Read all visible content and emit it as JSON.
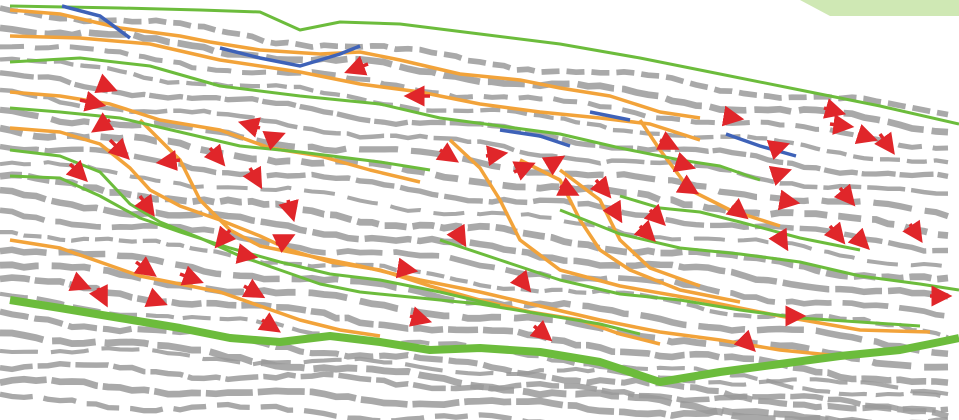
{
  "figure": {
    "colors": {
      "background": "#ffffff",
      "reflector": "#9a9a9a",
      "horizon_major": "#6cbc3c",
      "horizon_minor": "#6cbc3c",
      "fault": "#f2a33a",
      "horizon_blue": "#3e62b8",
      "arrow": "#e0262a",
      "corner_tint": "#cfe8b4"
    },
    "icons": {
      "arrow": "red-arrow-icon"
    }
  }
}
